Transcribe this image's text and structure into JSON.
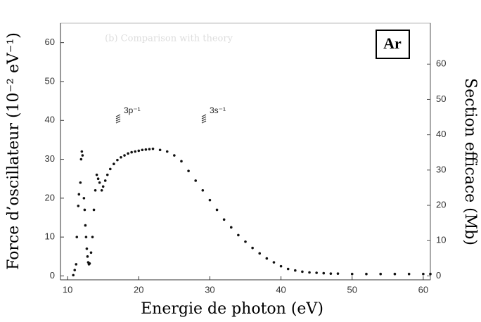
{
  "chart_data": {
    "type": "scatter",
    "title": "(b) Comparison with theory",
    "inset_label": "Ar",
    "annotations": [
      "3p⁻¹",
      "3s⁻¹"
    ],
    "x_label": "Energie de photon (eV)",
    "y_label": "Force d’oscillateur (10⁻² eV⁻¹)",
    "y2_label": "Section efficace (Mb)",
    "xlim": [
      9,
      61
    ],
    "xticks": [
      10,
      20,
      30,
      40,
      50,
      60
    ],
    "ylim": [
      -1,
      65
    ],
    "yticks": [
      0,
      10,
      20,
      30,
      40,
      50,
      60
    ],
    "y2lim": [
      -1.1,
      71.6
    ],
    "y2ticks": [
      0,
      10,
      20,
      30,
      40,
      50,
      60
    ],
    "color": "#111111",
    "x": [
      10.8,
      11.0,
      11.2,
      11.3,
      11.5,
      11.6,
      11.8,
      11.9,
      12.0,
      12.1,
      12.3,
      12.4,
      12.5,
      12.6,
      12.7,
      12.8,
      12.9,
      13.0,
      13.1,
      13.3,
      13.5,
      13.7,
      13.9,
      14.1,
      14.3,
      14.5,
      14.8,
      15.0,
      15.3,
      15.6,
      16.0,
      16.5,
      17,
      17.5,
      18,
      18.5,
      19,
      19.5,
      20,
      20.5,
      21,
      21.5,
      22,
      23,
      24,
      25,
      26,
      27,
      28,
      29,
      30,
      31,
      32,
      33,
      34,
      35,
      36,
      37,
      38,
      39,
      40,
      41,
      42,
      43,
      44,
      45,
      46,
      47,
      48,
      50,
      52,
      54,
      56,
      58,
      60,
      61
    ],
    "values": [
      0.2,
      1.5,
      3,
      10,
      18,
      21,
      24,
      30,
      32,
      31,
      20,
      17,
      13,
      10,
      7,
      5,
      3.5,
      3,
      3.2,
      6,
      10,
      17,
      22,
      26,
      25,
      24,
      22,
      23,
      24.5,
      26,
      27.5,
      28.8,
      29.8,
      30.5,
      31,
      31.5,
      31.8,
      32,
      32.2,
      32.4,
      32.5,
      32.6,
      32.7,
      32.4,
      32,
      31,
      29.5,
      27,
      24.5,
      22,
      19.5,
      17,
      14.5,
      12.5,
      10.5,
      8.8,
      7.2,
      5.8,
      4.5,
      3.5,
      2.5,
      1.8,
      1.4,
      1.1,
      0.9,
      0.8,
      0.7,
      0.6,
      0.6,
      0.5,
      0.5,
      0.5,
      0.5,
      0.5,
      0.5,
      0.5
    ]
  }
}
